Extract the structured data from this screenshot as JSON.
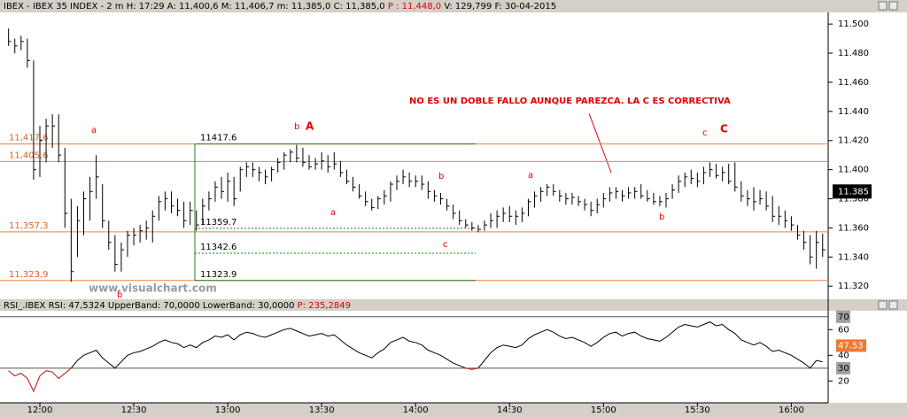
{
  "chart_data": [
    {
      "type": "ohlc",
      "header": [
        "IBEX - IBEX 35 INDEX -  2 m H: 17:29 A: 11,400,6 M: 11,406,7 m: 11,385,0 C: 11,385,0",
        "P : 11,448,0",
        "V: 129,799 F: 30-04-2015"
      ],
      "watermark": "www.visualchart.com",
      "color": "#000000",
      "x": [
        "11:50",
        "11:52",
        "11:54",
        "11:56",
        "11:58",
        "12:00",
        "12:02",
        "12:04",
        "12:06",
        "12:08",
        "12:10",
        "12:12",
        "12:14",
        "12:16",
        "12:18",
        "12:20",
        "12:22",
        "12:24",
        "12:26",
        "12:28",
        "12:30",
        "12:32",
        "12:34",
        "12:36",
        "12:38",
        "12:40",
        "12:42",
        "12:44",
        "12:46",
        "12:48",
        "12:50",
        "12:52",
        "12:54",
        "12:56",
        "12:58",
        "13:00",
        "13:02",
        "13:04",
        "13:06",
        "13:08",
        "13:10",
        "13:12",
        "13:14",
        "13:16",
        "13:18",
        "13:20",
        "13:22",
        "13:24",
        "13:26",
        "13:28",
        "13:30",
        "13:32",
        "13:34",
        "13:36",
        "13:38",
        "13:40",
        "13:42",
        "13:44",
        "13:46",
        "13:48",
        "13:50",
        "13:52",
        "13:54",
        "13:56",
        "13:58",
        "14:00",
        "14:02",
        "14:04",
        "14:06",
        "14:08",
        "14:10",
        "14:12",
        "14:14",
        "14:16",
        "14:18",
        "14:20",
        "14:22",
        "14:24",
        "14:26",
        "14:28",
        "14:30",
        "14:32",
        "14:34",
        "14:36",
        "14:38",
        "14:40",
        "14:42",
        "14:44",
        "14:46",
        "14:48",
        "14:50",
        "14:52",
        "14:54",
        "14:56",
        "14:58",
        "15:00",
        "15:02",
        "15:04",
        "15:06",
        "15:08",
        "15:10",
        "15:12",
        "15:14",
        "15:16",
        "15:18",
        "15:20",
        "15:22",
        "15:24",
        "15:26",
        "15:28",
        "15:30",
        "15:32",
        "15:34",
        "15:36",
        "15:38",
        "15:40",
        "15:42",
        "15:44",
        "15:46",
        "15:48",
        "15:50",
        "15:52",
        "15:54",
        "15:56",
        "15:58",
        "16:00",
        "16:02",
        "16:04",
        "16:06",
        "16:08",
        "16:10"
      ],
      "high": [
        11497,
        11490,
        11492,
        11490,
        11475,
        11430,
        11435,
        11438,
        11438,
        11415,
        11380,
        11375,
        11385,
        11395,
        11410,
        11390,
        11365,
        11355,
        11350,
        11358,
        11360,
        11362,
        11365,
        11372,
        11382,
        11385,
        11385,
        11380,
        11378,
        11378,
        11372,
        11380,
        11385,
        11392,
        11395,
        11398,
        11395,
        11402,
        11405,
        11405,
        11402,
        11400,
        11402,
        11408,
        11412,
        11414,
        11417,
        11415,
        11410,
        11408,
        11412,
        11410,
        11412,
        11406,
        11400,
        11395,
        11390,
        11385,
        11380,
        11382,
        11386,
        11392,
        11396,
        11400,
        11398,
        11396,
        11396,
        11392,
        11386,
        11384,
        11380,
        11376,
        11372,
        11366,
        11364,
        11362,
        11365,
        11370,
        11372,
        11374,
        11375,
        11372,
        11374,
        11380,
        11385,
        11388,
        11390,
        11390,
        11386,
        11384,
        11384,
        11382,
        11380,
        11378,
        11380,
        11384,
        11388,
        11388,
        11386,
        11388,
        11388,
        11390,
        11386,
        11384,
        11382,
        11384,
        11390,
        11396,
        11398,
        11400,
        11398,
        11402,
        11405,
        11404,
        11402,
        11404,
        11405,
        11392,
        11386,
        11388,
        11386,
        11385,
        11382,
        11375,
        11372,
        11368,
        11362,
        11358,
        11355,
        11358,
        11356
      ],
      "low": [
        11485,
        11480,
        11482,
        11470,
        11393,
        11395,
        11405,
        11415,
        11405,
        11360,
        11323,
        11340,
        11355,
        11365,
        11380,
        11360,
        11345,
        11330,
        11330,
        11340,
        11348,
        11350,
        11352,
        11350,
        11365,
        11372,
        11370,
        11368,
        11360,
        11362,
        11358,
        11362,
        11372,
        11378,
        11380,
        11378,
        11375,
        11385,
        11395,
        11395,
        11392,
        11390,
        11392,
        11398,
        11400,
        11405,
        11405,
        11402,
        11400,
        11400,
        11400,
        11398,
        11400,
        11395,
        11390,
        11385,
        11380,
        11375,
        11372,
        11373,
        11376,
        11378,
        11386,
        11390,
        11388,
        11388,
        11386,
        11380,
        11378,
        11376,
        11372,
        11366,
        11362,
        11360,
        11358,
        11357,
        11358,
        11360,
        11360,
        11364,
        11364,
        11362,
        11364,
        11368,
        11374,
        11378,
        11382,
        11382,
        11378,
        11376,
        11376,
        11375,
        11372,
        11368,
        11370,
        11374,
        11378,
        11380,
        11378,
        11380,
        11380,
        11380,
        11378,
        11376,
        11375,
        11374,
        11380,
        11384,
        11388,
        11390,
        11388,
        11390,
        11395,
        11394,
        11392,
        11390,
        11385,
        11378,
        11375,
        11372,
        11376,
        11372,
        11364,
        11362,
        11360,
        11358,
        11352,
        11345,
        11335,
        11332,
        11340
      ],
      "close": [
        11488,
        11485,
        11488,
        11475,
        11400,
        11420,
        11430,
        11430,
        11410,
        11370,
        11330,
        11365,
        11380,
        11385,
        11395,
        11365,
        11350,
        11335,
        11345,
        11355,
        11355,
        11358,
        11360,
        11368,
        11378,
        11380,
        11375,
        11372,
        11365,
        11372,
        11362,
        11375,
        11380,
        11388,
        11385,
        11392,
        11380,
        11400,
        11402,
        11400,
        11398,
        11395,
        11400,
        11405,
        11410,
        11412,
        11408,
        11405,
        11402,
        11404,
        11406,
        11402,
        11404,
        11398,
        11392,
        11388,
        11382,
        11378,
        11374,
        11380,
        11382,
        11390,
        11392,
        11395,
        11392,
        11392,
        11390,
        11385,
        11382,
        11380,
        11375,
        11370,
        11365,
        11362,
        11360,
        11359,
        11362,
        11365,
        11368,
        11370,
        11368,
        11368,
        11370,
        11378,
        11382,
        11385,
        11388,
        11385,
        11382,
        11380,
        11381,
        11378,
        11376,
        11372,
        11376,
        11380,
        11384,
        11385,
        11382,
        11384,
        11385,
        11382,
        11380,
        11378,
        11378,
        11380,
        11386,
        11392,
        11395,
        11394,
        11392,
        11398,
        11400,
        11396,
        11398,
        11392,
        11388,
        11382,
        11380,
        11378,
        11380,
        11375,
        11368,
        11368,
        11365,
        11362,
        11355,
        11350,
        11340,
        11350,
        11345
      ],
      "ylim": [
        11311,
        11508
      ],
      "yticks": [
        {
          "value": 11320,
          "label": "11.320"
        },
        {
          "value": 11340,
          "label": "11.340"
        },
        {
          "value": 11360,
          "label": "11.360"
        },
        {
          "value": 11380,
          "label": "11.380"
        },
        {
          "value": 11400,
          "label": "11.400"
        },
        {
          "value": 11420,
          "label": "11.420"
        },
        {
          "value": 11440,
          "label": "11.440"
        },
        {
          "value": 11460,
          "label": "11.460"
        },
        {
          "value": 11480,
          "label": "11.480"
        },
        {
          "value": 11500,
          "label": "11.500"
        }
      ],
      "last": {
        "value": 11385,
        "label": "11.385"
      },
      "levels": [
        {
          "value": 11417.6,
          "label": "11,417,6"
        },
        {
          "value": 11405.6,
          "label": "11,405,6"
        },
        {
          "value": 11357.3,
          "label": "11,357,3"
        },
        {
          "value": 11323.9,
          "label": "11,323,9"
        }
      ],
      "level_color": "#f08040",
      "box_levels": [
        11417.6,
        11359.7,
        11342.6,
        11323.9
      ],
      "box_color": "#208020",
      "annotations": [
        "a",
        "b",
        "A",
        "a",
        "b",
        "c",
        "a",
        "b",
        "c",
        "C",
        "b",
        "NO ES UN DOBLE FALLO AUNQUE PAREZCA. LA C ES CORRECTIVA"
      ]
    },
    {
      "type": "line",
      "header": [
        "RSI_.IBEX RSI: 47,5324 UpperBand: 70,0000 LowerBand: 30,0000",
        "P: 235,2849"
      ],
      "color": "#000000",
      "oversold_color": "#e03030",
      "values": [
        28,
        24,
        26,
        22,
        12,
        24,
        28,
        27,
        22,
        26,
        30,
        36,
        40,
        42,
        44,
        38,
        34,
        30,
        35,
        40,
        42,
        43,
        45,
        47,
        50,
        52,
        50,
        49,
        46,
        48,
        46,
        50,
        52,
        55,
        54,
        56,
        52,
        56,
        58,
        57,
        55,
        54,
        56,
        58,
        60,
        61,
        59,
        57,
        55,
        56,
        57,
        55,
        56,
        52,
        48,
        45,
        42,
        40,
        38,
        42,
        45,
        50,
        52,
        54,
        51,
        50,
        48,
        44,
        42,
        40,
        37,
        34,
        32,
        30,
        29,
        30,
        36,
        42,
        46,
        48,
        47,
        46,
        48,
        53,
        56,
        58,
        60,
        58,
        55,
        53,
        54,
        52,
        50,
        47,
        50,
        54,
        57,
        58,
        55,
        57,
        58,
        55,
        53,
        52,
        51,
        54,
        58,
        62,
        64,
        63,
        62,
        64,
        66,
        63,
        64,
        60,
        57,
        52,
        50,
        48,
        50,
        47,
        43,
        44,
        42,
        40,
        37,
        34,
        30,
        36,
        35
      ],
      "ylim": [
        3,
        74
      ],
      "yticks": [
        20,
        40,
        60
      ],
      "bands": [
        70,
        30
      ],
      "last": 47.53,
      "xticks": [
        "12:00",
        "12:30",
        "13:00",
        "13:30",
        "14:00",
        "14:30",
        "15:00",
        "15:30",
        "16:00"
      ]
    }
  ]
}
